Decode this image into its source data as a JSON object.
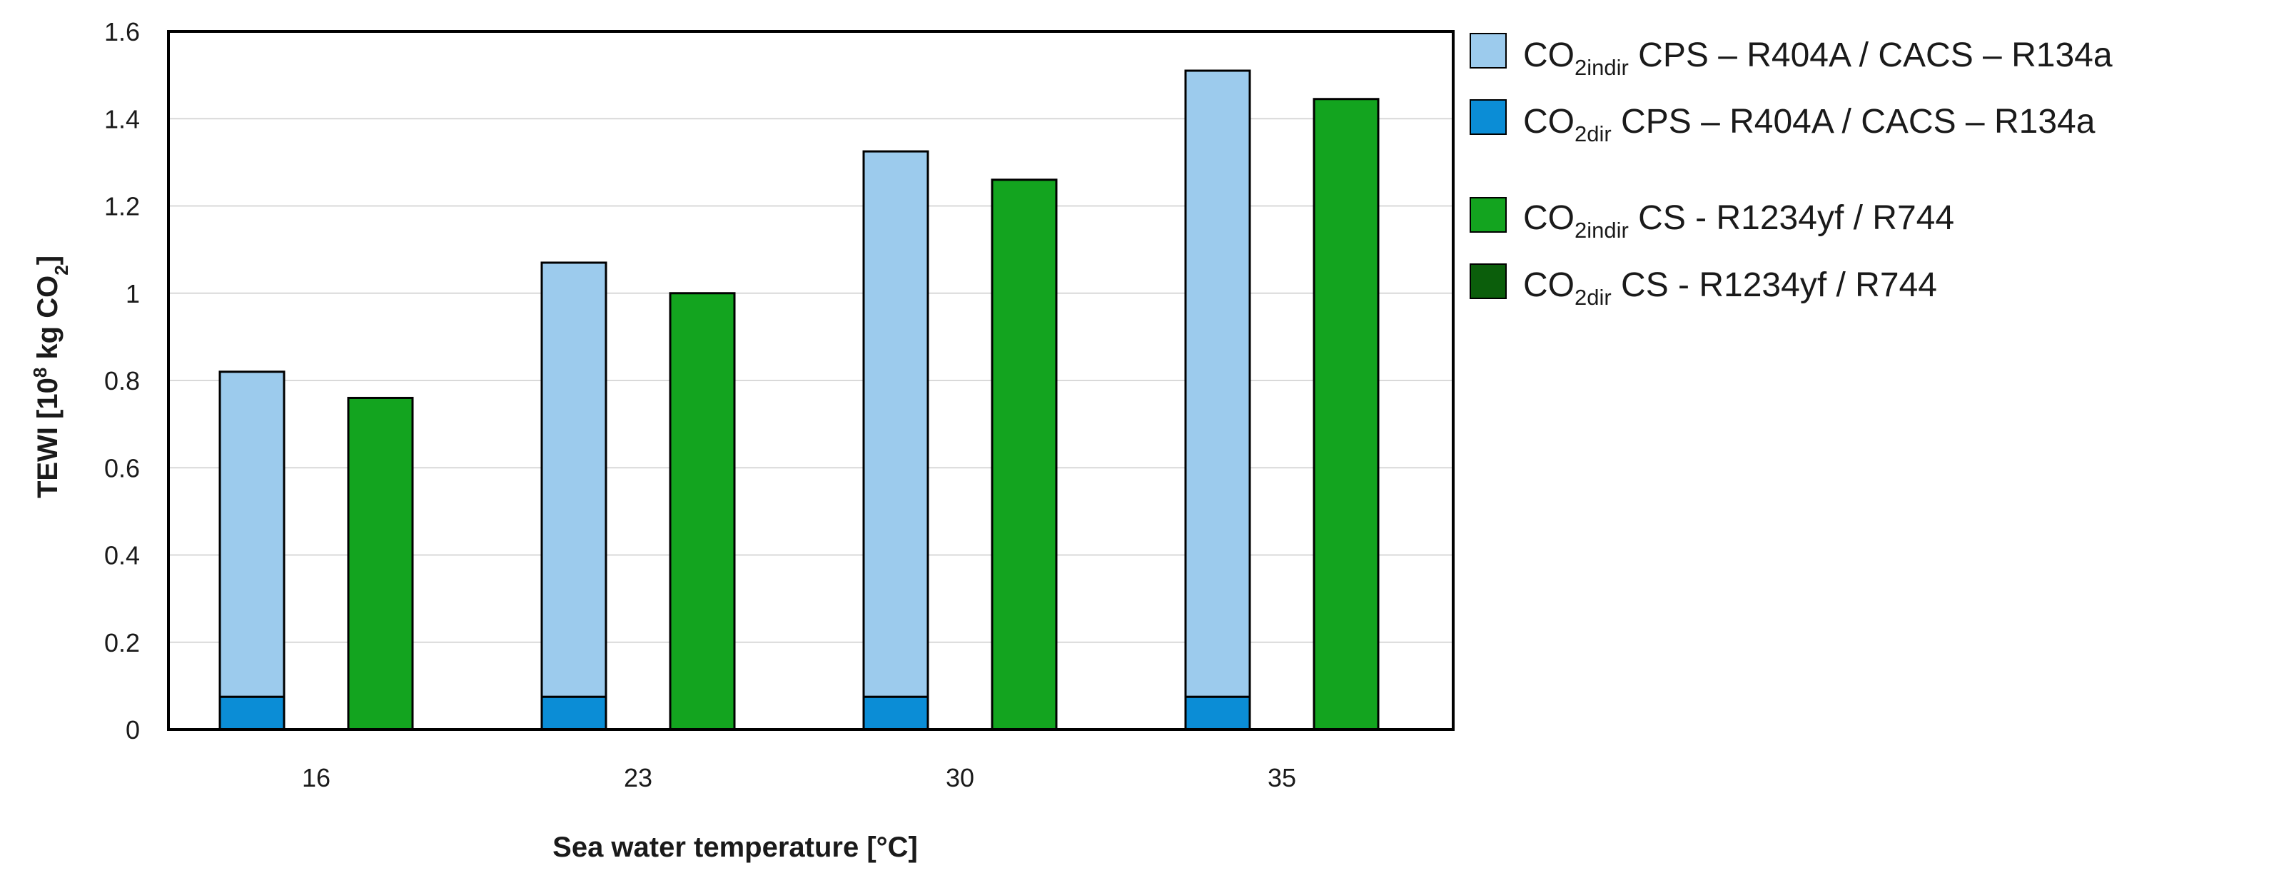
{
  "chart_data": {
    "type": "bar",
    "stacked": true,
    "grid": true,
    "legend_position": "right",
    "xlabel": "Sea water temperature [°C]",
    "ylabel": {
      "prefix": "TEWI [10",
      "sup": "8",
      "unit": " kg CO",
      "sub": "2",
      "suffix": "]"
    },
    "ylim": [
      0,
      1.6
    ],
    "yticks": [
      0,
      0.2,
      0.4,
      0.6,
      0.8,
      1,
      1.2,
      1.4,
      1.6
    ],
    "ytick_labels": [
      "0",
      "0.2",
      "0.4",
      "0.6",
      "0.8",
      "1",
      "1.2",
      "1.4",
      "1.6"
    ],
    "categories": [
      "16",
      "23",
      "30",
      "35"
    ],
    "series": [
      {
        "id": "cps_dir",
        "stack": "CPS – R404A / CACS – R134a",
        "name": "CO2dir CPS – R404A / CACS – R134a",
        "legend_main": "CO",
        "legend_sub": "2dir",
        "legend_rest": " CPS – R404A / CACS – R134a",
        "color": "#0b8dd6",
        "values": [
          0.075,
          0.075,
          0.075,
          0.075
        ]
      },
      {
        "id": "cps_indir",
        "stack": "CPS – R404A / CACS – R134a",
        "name": "CO2indir CPS – R404A / CACS – R134a",
        "legend_main": "CO",
        "legend_sub": "2indir",
        "legend_rest": " CPS – R404A / CACS – R134a",
        "color": "#9ccbed",
        "values": [
          0.745,
          0.995,
          1.25,
          1.435
        ]
      },
      {
        "id": "cs_dir",
        "stack": "CS - R1234yf / R744",
        "name": "CO2dir CS - R1234yf / R744",
        "legend_main": "CO",
        "legend_sub": "2dir",
        "legend_rest": " CS  - R1234yf / R744",
        "color": "#0b5e0b",
        "values": [
          0,
          0,
          0,
          0
        ]
      },
      {
        "id": "cs_indir",
        "stack": "CS - R1234yf / R744",
        "name": "CO2indir CS - R1234yf / R744",
        "legend_main": "CO",
        "legend_sub": "2indir",
        "legend_rest": " CS  - R1234yf / R744",
        "color": "#13a41f",
        "values": [
          0.76,
          1.0,
          1.26,
          1.445
        ]
      }
    ],
    "legend_order": [
      "cps_indir",
      "cps_dir",
      "cs_indir",
      "cs_dir"
    ]
  }
}
